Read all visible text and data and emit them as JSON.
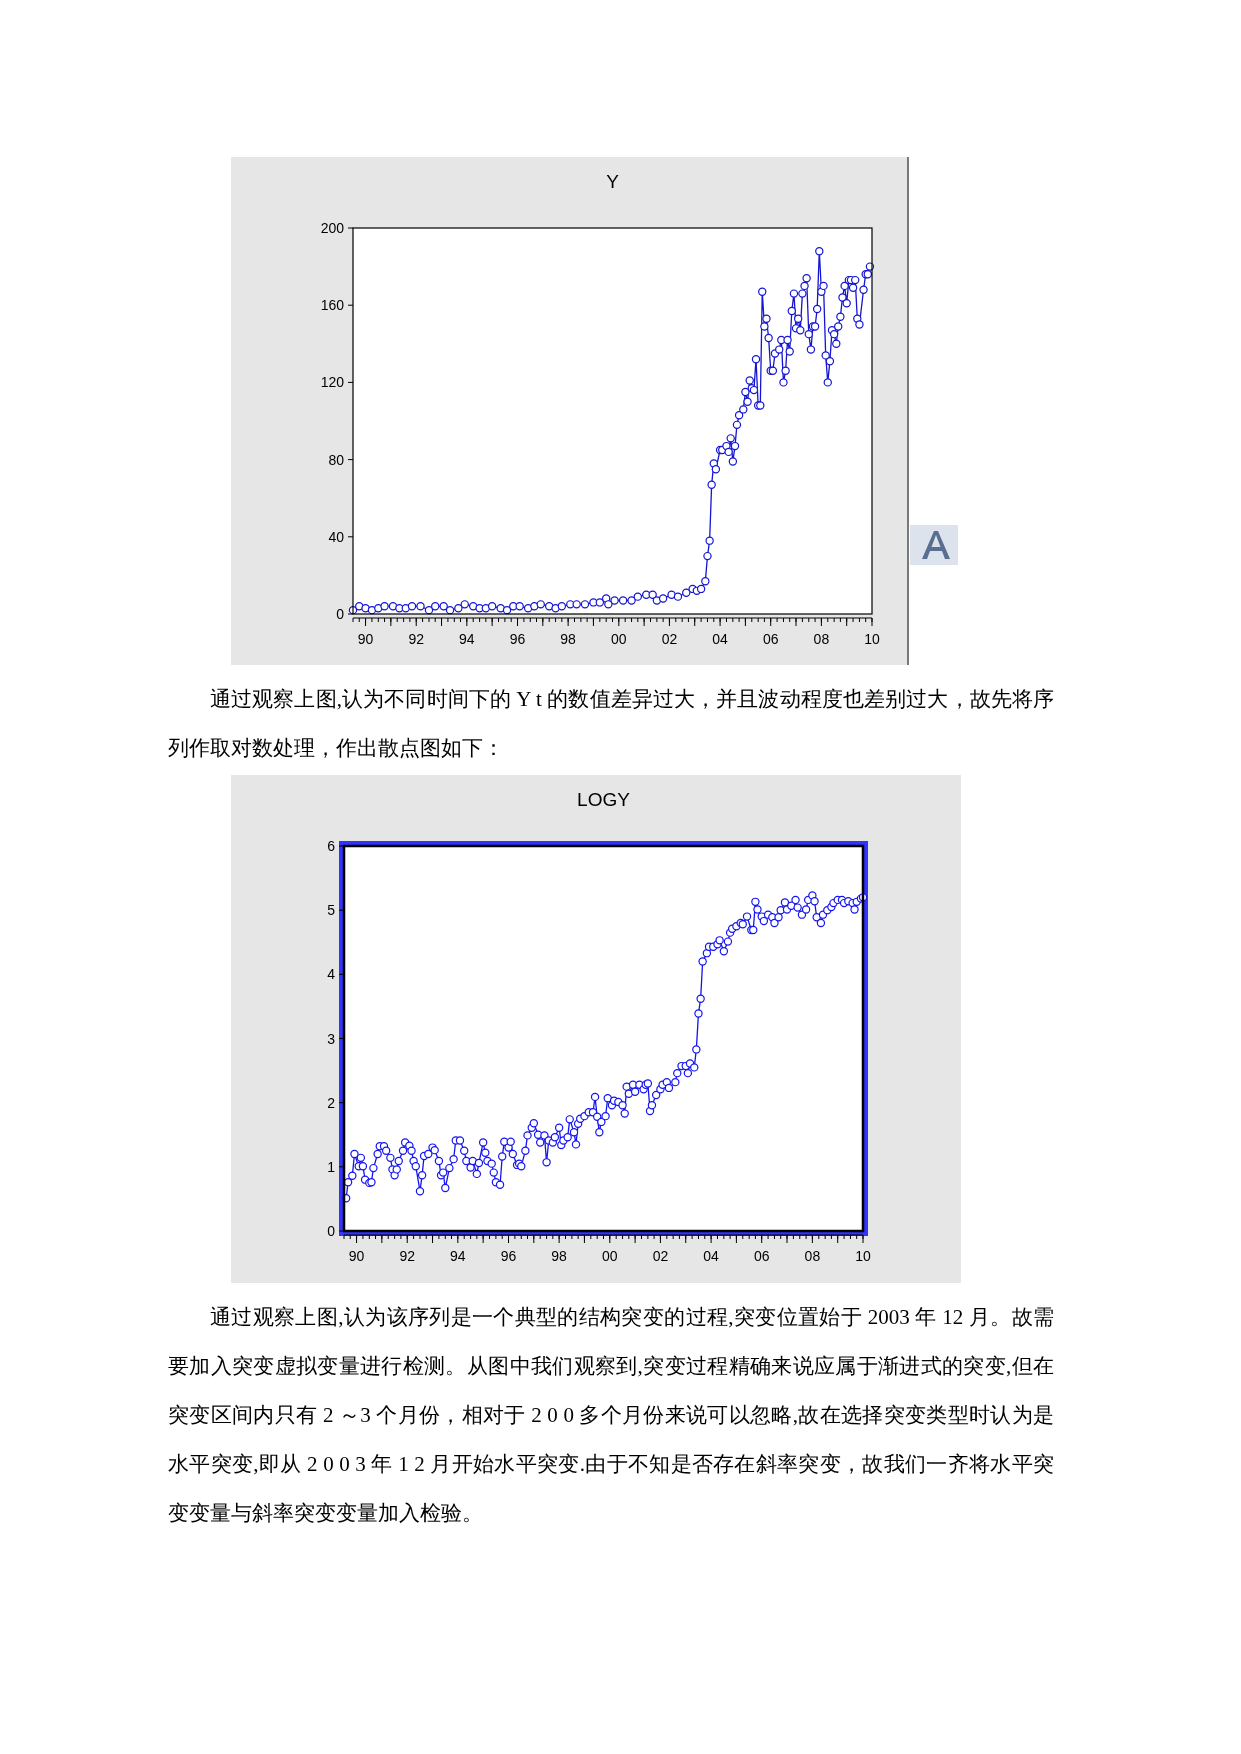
{
  "chart_data": [
    {
      "type": "line",
      "title": "Y",
      "x": [
        "1990-01",
        "1990-04",
        "1990-07",
        "1990-10",
        "1991-01",
        "1991-04",
        "1991-08",
        "1991-11",
        "1992-02",
        "1992-05",
        "1992-09",
        "1993-01",
        "1993-04",
        "1993-08",
        "1993-11",
        "1994-03",
        "1994-06",
        "1994-10",
        "1995-01",
        "1995-04",
        "1995-07",
        "1995-11",
        "1996-02",
        "1996-05",
        "1996-08",
        "1996-12",
        "1997-03",
        "1997-06",
        "1997-10",
        "1998-01",
        "1998-04",
        "1998-08",
        "1998-11",
        "1999-03",
        "1999-07",
        "1999-10",
        "2000-01",
        "2000-02",
        "2000-05",
        "2000-09",
        "2001-01",
        "2001-04",
        "2001-08",
        "2001-11",
        "2002-01",
        "2002-04",
        "2002-08",
        "2002-11",
        "2003-03",
        "2003-06",
        "2003-08",
        "2003-10",
        "2003-12",
        "2004-01",
        "2004-02",
        "2004-03",
        "2004-04",
        "2004-05",
        "2004-07",
        "2004-08",
        "2004-10",
        "2004-11",
        "2004-12",
        "2005-01",
        "2005-02",
        "2005-03",
        "2005-04",
        "2005-06",
        "2005-07",
        "2005-08",
        "2005-09",
        "2005-10",
        "2005-11",
        "2005-12",
        "2006-01",
        "2006-02",
        "2006-03",
        "2006-04",
        "2006-05",
        "2006-06",
        "2006-07",
        "2006-08",
        "2006-09",
        "2006-11",
        "2006-12",
        "2007-01",
        "2007-02",
        "2007-03",
        "2007-04",
        "2007-05",
        "2007-06",
        "2007-07",
        "2007-08",
        "2007-09",
        "2007-10",
        "2007-11",
        "2007-12",
        "2008-01",
        "2008-02",
        "2008-03",
        "2008-04",
        "2008-05",
        "2008-06",
        "2008-07",
        "2008-08",
        "2008-09",
        "2008-10",
        "2008-11",
        "2008-12",
        "2009-01",
        "2009-02",
        "2009-03",
        "2009-04",
        "2009-05",
        "2009-06",
        "2009-07",
        "2009-08",
        "2009-09",
        "2009-10",
        "2009-11",
        "2009-12",
        "2010-01",
        "2010-03",
        "2010-04",
        "2010-05",
        "2010-06"
      ],
      "series": [
        {
          "color": "#1414d2",
          "values": [
            2,
            4,
            3,
            2,
            3,
            4,
            4,
            3,
            3,
            4,
            4,
            2,
            4,
            4,
            2,
            3,
            5,
            4,
            3,
            3,
            4,
            3,
            2,
            4,
            4,
            3,
            4,
            5,
            4,
            3,
            4,
            5,
            5,
            5,
            6,
            6,
            8,
            5,
            7,
            7,
            7,
            9,
            10,
            10,
            7,
            8,
            10,
            9,
            11,
            13,
            12,
            13,
            17,
            30,
            38,
            67,
            78,
            75,
            85,
            85,
            87,
            84,
            91,
            79,
            87,
            98,
            103,
            106,
            115,
            110,
            121,
            117,
            116,
            132,
            108,
            108,
            167,
            149,
            153,
            143,
            126,
            126,
            135,
            137,
            142,
            120,
            126,
            142,
            136,
            157,
            166,
            148,
            153,
            147,
            166,
            170,
            174,
            145,
            137,
            149,
            149,
            158,
            188,
            167,
            170,
            134,
            120,
            131,
            147,
            145,
            140,
            149,
            154,
            164,
            170,
            161,
            173,
            173,
            169,
            173,
            153,
            150,
            168,
            176,
            176,
            180
          ]
        }
      ],
      "xlim": [
        "1990-01",
        "2010-07"
      ],
      "xticks": [
        {
          "value": "1990-07",
          "label": "90"
        },
        {
          "value": "1991-07",
          "label": null
        },
        {
          "value": "1992-07",
          "label": "92"
        },
        {
          "value": "1993-07",
          "label": null
        },
        {
          "value": "1994-07",
          "label": "94"
        },
        {
          "value": "1995-07",
          "label": null
        },
        {
          "value": "1996-07",
          "label": "96"
        },
        {
          "value": "1997-07",
          "label": null
        },
        {
          "value": "1998-07",
          "label": "98"
        },
        {
          "value": "1999-07",
          "label": null
        },
        {
          "value": "2000-07",
          "label": "00"
        },
        {
          "value": "2001-07",
          "label": null
        },
        {
          "value": "2002-07",
          "label": "02"
        },
        {
          "value": "2003-07",
          "label": null
        },
        {
          "value": "2004-07",
          "label": "04"
        },
        {
          "value": "2005-07",
          "label": null
        },
        {
          "value": "2006-07",
          "label": "06"
        },
        {
          "value": "2007-07",
          "label": null
        },
        {
          "value": "2008-07",
          "label": "08"
        },
        {
          "value": "2009-07",
          "label": null
        },
        {
          "value": "2010-07",
          "label": "10"
        }
      ],
      "ylim": [
        0,
        200
      ],
      "yticks": [
        0,
        40,
        80,
        120,
        160,
        200
      ],
      "marker": "circle",
      "line_style": "solid",
      "annotations": [
        "通过观察上图,认为不同时间下的 Y t 的数值差异过大，并且波动程度也差别过大，故先将序列作取对数处理，作出散点图如下："
      ]
    },
    {
      "type": "line",
      "title": "LOGY",
      "x": [
        "1990-02",
        "1990-03",
        "1990-05",
        "1990-06",
        "1990-08",
        "1990-09",
        "1990-10",
        "1990-11",
        "1991-01",
        "1991-02",
        "1991-03",
        "1991-05",
        "1991-06",
        "1991-08",
        "1991-09",
        "1991-11",
        "1991-12",
        "1992-01",
        "1992-02",
        "1992-03",
        "1992-05",
        "1992-06",
        "1992-08",
        "1992-09",
        "1992-10",
        "1992-11",
        "1993-01",
        "1993-02",
        "1993-03",
        "1993-05",
        "1993-07",
        "1993-08",
        "1993-10",
        "1993-11",
        "1993-12",
        "1994-01",
        "1994-03",
        "1994-05",
        "1994-06",
        "1994-08",
        "1994-10",
        "1994-11",
        "1995-01",
        "1995-02",
        "1995-04",
        "1995-05",
        "1995-07",
        "1995-08",
        "1995-09",
        "1995-11",
        "1995-12",
        "1996-01",
        "1996-03",
        "1996-04",
        "1996-05",
        "1996-07",
        "1996-08",
        "1996-09",
        "1996-11",
        "1996-12",
        "1997-01",
        "1997-03",
        "1997-04",
        "1997-06",
        "1997-07",
        "1997-09",
        "1997-10",
        "1997-12",
        "1998-01",
        "1998-02",
        "1998-04",
        "1998-05",
        "1998-07",
        "1998-08",
        "1998-09",
        "1998-11",
        "1998-12",
        "1999-02",
        "1999-03",
        "1999-04",
        "1999-05",
        "1999-07",
        "1999-09",
        "1999-11",
        "1999-12",
        "2000-01",
        "2000-02",
        "2000-03",
        "2000-05",
        "2000-06",
        "2000-08",
        "2000-09",
        "2000-11",
        "2001-01",
        "2001-02",
        "2001-03",
        "2001-04",
        "2001-06",
        "2001-07",
        "2001-09",
        "2001-11",
        "2001-12",
        "2002-01",
        "2002-02",
        "2002-03",
        "2002-05",
        "2002-07",
        "2002-08",
        "2002-10",
        "2002-11",
        "2003-02",
        "2003-03",
        "2003-05",
        "2003-07",
        "2003-08",
        "2003-09",
        "2003-11",
        "2003-12",
        "2004-01",
        "2004-02",
        "2004-03",
        "2004-05",
        "2004-06",
        "2004-08",
        "2004-10",
        "2004-11",
        "2005-01",
        "2005-03",
        "2005-04",
        "2005-05",
        "2005-07",
        "2005-09",
        "2005-10",
        "2005-12",
        "2006-02",
        "2006-03",
        "2006-04",
        "2006-05",
        "2006-07",
        "2006-08",
        "2006-10",
        "2006-12",
        "2007-01",
        "2007-03",
        "2007-04",
        "2007-06",
        "2007-07",
        "2007-09",
        "2007-11",
        "2007-12",
        "2008-02",
        "2008-04",
        "2008-05",
        "2008-07",
        "2008-08",
        "2008-09",
        "2008-11",
        "2008-12",
        "2009-02",
        "2009-04",
        "2009-05",
        "2009-07",
        "2009-09",
        "2009-10",
        "2009-12",
        "2010-02",
        "2010-03",
        "2010-04",
        "2010-06",
        "2010-07"
      ],
      "series": [
        {
          "color": "#1414f0",
          "values": [
            0.51,
            0.76,
            0.86,
            1.2,
            1.01,
            1.14,
            1.01,
            0.8,
            0.75,
            0.76,
            0.98,
            1.2,
            1.32,
            1.32,
            1.25,
            1.14,
            0.96,
            0.87,
            0.96,
            1.09,
            1.25,
            1.38,
            1.33,
            1.25,
            1.09,
            1.01,
            0.62,
            0.87,
            1.17,
            1.2,
            1.3,
            1.26,
            1.09,
            0.87,
            0.91,
            0.67,
            0.98,
            1.12,
            1.41,
            1.41,
            1.25,
            1.09,
            0.99,
            1.09,
            0.89,
            1.06,
            1.38,
            1.22,
            1.09,
            1.05,
            0.91,
            0.76,
            0.72,
            1.16,
            1.39,
            1.3,
            1.39,
            1.2,
            1.03,
            1.05,
            1.01,
            1.25,
            1.49,
            1.61,
            1.68,
            1.5,
            1.38,
            1.49,
            1.07,
            1.41,
            1.38,
            1.46,
            1.61,
            1.34,
            1.41,
            1.46,
            1.74,
            1.54,
            1.35,
            1.67,
            1.75,
            1.79,
            1.85,
            1.85,
            2.09,
            1.78,
            1.54,
            1.7,
            1.79,
            2.07,
            1.96,
            2.03,
            2.01,
            1.96,
            1.83,
            2.25,
            2.14,
            2.28,
            2.17,
            2.28,
            2.21,
            2.28,
            2.3,
            1.87,
            1.96,
            2.12,
            2.21,
            2.28,
            2.32,
            2.23,
            2.32,
            2.46,
            2.57,
            2.57,
            2.46,
            2.61,
            2.55,
            2.83,
            3.39,
            3.62,
            4.2,
            4.33,
            4.43,
            4.43,
            4.47,
            4.53,
            4.36,
            4.51,
            4.65,
            4.71,
            4.75,
            4.8,
            4.78,
            4.9,
            4.69,
            4.69,
            5.13,
            5.01,
            4.9,
            4.83,
            4.93,
            4.89,
            4.8,
            4.89,
            5.0,
            5.12,
            5.01,
            5.07,
            5.16,
            5.04,
            4.93,
            5.01,
            5.16,
            5.23,
            5.14,
            4.89,
            4.8,
            4.93,
            5.0,
            5.05,
            5.11,
            5.16,
            5.16,
            5.11,
            5.14,
            5.11,
            5.01,
            5.13,
            5.18,
            5.2
          ]
        }
      ],
      "xlim": [
        "1990-01",
        "2010-07"
      ],
      "xticks": [
        {
          "value": "1990-07",
          "label": "90"
        },
        {
          "value": "1991-07",
          "label": null
        },
        {
          "value": "1992-07",
          "label": "92"
        },
        {
          "value": "1993-07",
          "label": null
        },
        {
          "value": "1994-07",
          "label": "94"
        },
        {
          "value": "1995-07",
          "label": null
        },
        {
          "value": "1996-07",
          "label": "96"
        },
        {
          "value": "1997-07",
          "label": null
        },
        {
          "value": "1998-07",
          "label": "98"
        },
        {
          "value": "1999-07",
          "label": null
        },
        {
          "value": "2000-07",
          "label": "00"
        },
        {
          "value": "2001-07",
          "label": null
        },
        {
          "value": "2002-07",
          "label": "02"
        },
        {
          "value": "2003-07",
          "label": null
        },
        {
          "value": "2004-07",
          "label": "04"
        },
        {
          "value": "2005-07",
          "label": null
        },
        {
          "value": "2006-07",
          "label": "06"
        },
        {
          "value": "2007-07",
          "label": null
        },
        {
          "value": "2008-07",
          "label": "08"
        },
        {
          "value": "2009-07",
          "label": null
        },
        {
          "value": "2010-07",
          "label": "10"
        }
      ],
      "ylim": [
        0,
        6
      ],
      "yticks": [
        0,
        1,
        2,
        3,
        4,
        5,
        6
      ],
      "marker": "circle",
      "line_style": "solid",
      "annotations": [
        "通过观察上图,认为该序列是一个典型的结构突变的过程,突变位置始于 2003 年 12 月。故需要加入突变虚拟变量进行检测。从图中我们观察到,突变过程精确来说应属于渐进式的突变,但在突变区间内只有 2 ～3 个月份，相对于 2 0 0 多个月份来说可以忽略,故在选择突变类型时认为是水平突变,即从 2 0 0 3 年 1 2 月开始水平突变.由于不知是否存在斜率突变，故我们一齐将水平突变变量与斜率突变变量加入检验。"
      ]
    }
  ]
}
